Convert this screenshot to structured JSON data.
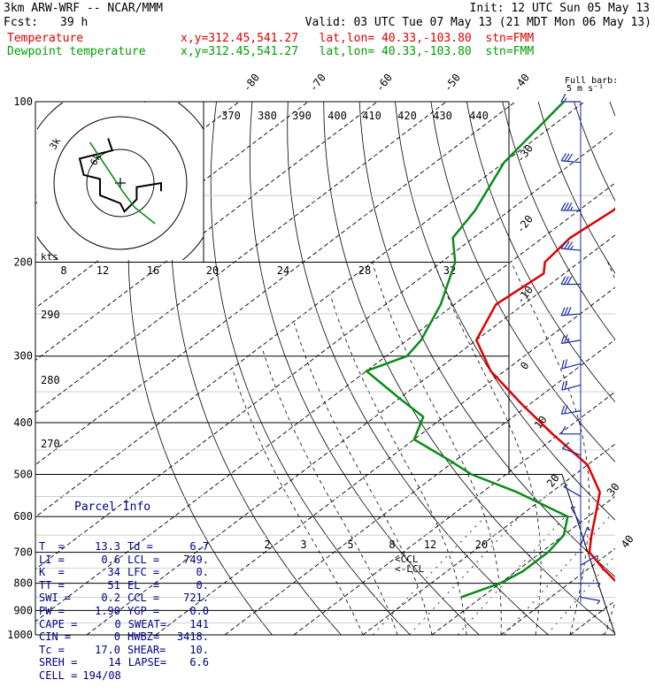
{
  "header": {
    "model": "3km ARW-WRF -- NCAR/MMM",
    "init": "Init: 12 UTC Sun 05 May 13",
    "fcst_label": "Fcst:",
    "fcst_value": "39 h",
    "valid": "Valid: 03 UTC Tue 07 May 13 (21 MDT Mon 06 May 13)",
    "temp_label": "Temperature",
    "temp_info": "x,y=312.45,541.27   lat,lon= 40.33,-103.80  stn=FMM",
    "dew_label": "Dewpoint temperature",
    "dew_info": "x,y=312.45,541.27   lat,lon= 40.33,-103.80  stn=FMM",
    "barb_note_1": "Full barb:",
    "barb_note_2": "5 m s⁻¹"
  },
  "colors": {
    "temperature": "#e00000",
    "dewpoint": "#0a8c1a",
    "barb": "#1a2aa0",
    "parcel_text": "#000080"
  },
  "hodograph": {
    "units": "kts",
    "speed_labels": [
      "8",
      "12",
      "16",
      "20",
      "24",
      "28",
      "32"
    ],
    "height_labels": [
      "3k",
      "6k"
    ]
  },
  "parcel_info": {
    "title": "Parcel Info",
    "rows": [
      [
        "T  =",
        "13.3",
        "Td =",
        "6.7"
      ],
      [
        "LI =",
        "0.6",
        "LCL =",
        "749."
      ],
      [
        "K  =",
        "34",
        "LFC =",
        "0."
      ],
      [
        "TT =",
        "51",
        "EL  =",
        "0."
      ],
      [
        "SWI =",
        "0.2",
        "CCL =",
        "721."
      ],
      [
        "PW =",
        "1.90",
        "YGP =",
        "0.0"
      ],
      [
        "CAPE =",
        "0",
        "SWEAT=",
        "141"
      ],
      [
        "CIN =",
        "0",
        "HWBZ=",
        "3418."
      ],
      [
        "Tc =",
        "17.0",
        "SHEAR=",
        "10."
      ],
      [
        "SREH =",
        "14",
        "LAPSE=",
        "6.6"
      ],
      [
        "CELL =",
        "194/08",
        "",
        ""
      ]
    ]
  },
  "chart_data": {
    "type": "line",
    "title": "",
    "xlabel": "",
    "ylabel": "",
    "pressure_levels": [
      "100",
      "200",
      "300",
      "400",
      "500",
      "600",
      "700",
      "800",
      "900",
      "1000"
    ],
    "isotherm_labels": [
      "-80",
      "-70",
      "-60",
      "-50",
      "-40",
      "-30",
      "-20",
      "-10",
      "0",
      "10",
      "20",
      "30",
      "40"
    ],
    "theta_labels": [
      "370",
      "380",
      "390",
      "400",
      "410",
      "420",
      "430",
      "440"
    ],
    "theta_side_labels": [
      "290",
      "280",
      "270"
    ],
    "mixing_ratio_labels": [
      "2",
      "3",
      "5",
      "8",
      "12",
      "20"
    ],
    "lcl_labels": [
      "CCL",
      "LCL"
    ],
    "series": [
      {
        "name": "Temperature",
        "p": [
          100,
          130,
          160,
          180,
          200,
          210,
          240,
          280,
          320,
          370,
          420,
          480,
          540,
          600,
          650,
          700,
          750,
          800,
          850
        ],
        "t": [
          -57,
          -57,
          -55,
          -56,
          -55,
          -53,
          -54,
          -50,
          -42,
          -31,
          -21,
          -10,
          -3,
          1,
          4,
          7,
          12,
          17,
          23
        ]
      },
      {
        "name": "Dewpoint temperature",
        "p": [
          100,
          130,
          160,
          180,
          200,
          240,
          280,
          300,
          320,
          360,
          390,
          430,
          470,
          500,
          540,
          600,
          650,
          700,
          760,
          800,
          850
        ],
        "t": [
          -83,
          -80,
          -75,
          -73,
          -68,
          -62,
          -58,
          -57,
          -60,
          -50,
          -43,
          -40,
          -31,
          -25,
          -15,
          -3,
          0,
          1,
          1,
          0,
          -3
        ]
      }
    ],
    "wind_barbs": [
      {
        "p": 100,
        "dir": 270,
        "spd": 15
      },
      {
        "p": 130,
        "dir": 275,
        "spd": 30
      },
      {
        "p": 160,
        "dir": 270,
        "spd": 35
      },
      {
        "p": 190,
        "dir": 275,
        "spd": 35
      },
      {
        "p": 220,
        "dir": 270,
        "spd": 30
      },
      {
        "p": 250,
        "dir": 265,
        "spd": 28
      },
      {
        "p": 280,
        "dir": 260,
        "spd": 25
      },
      {
        "p": 310,
        "dir": 255,
        "spd": 22
      },
      {
        "p": 340,
        "dir": 255,
        "spd": 20
      },
      {
        "p": 380,
        "dir": 260,
        "spd": 18
      },
      {
        "p": 420,
        "dir": 270,
        "spd": 12
      },
      {
        "p": 460,
        "dir": 290,
        "spd": 8
      },
      {
        "p": 550,
        "dir": 300,
        "spd": 5
      },
      {
        "p": 620,
        "dir": 330,
        "spd": 5
      },
      {
        "p": 680,
        "dir": 20,
        "spd": 4
      },
      {
        "p": 740,
        "dir": 60,
        "spd": 5
      },
      {
        "p": 800,
        "dir": 90,
        "spd": 5
      },
      {
        "p": 850,
        "dir": 100,
        "spd": 5
      }
    ],
    "hodograph_trace_uv": [
      [
        -3,
        11
      ],
      [
        -2,
        8
      ],
      [
        -10,
        6
      ],
      [
        -9,
        2
      ],
      [
        -5,
        1
      ],
      [
        -5,
        -3
      ],
      [
        0,
        -5
      ],
      [
        1,
        -7
      ],
      [
        4,
        -4
      ],
      [
        4,
        -1
      ],
      [
        10,
        0
      ],
      [
        10,
        -2
      ]
    ],
    "hodograph_green_uv": [
      [
        2,
        -10
      ],
      [
        -3,
        -6
      ],
      [
        -6,
        -2
      ],
      [
        -10,
        4
      ],
      [
        -14,
        10
      ]
    ]
  }
}
